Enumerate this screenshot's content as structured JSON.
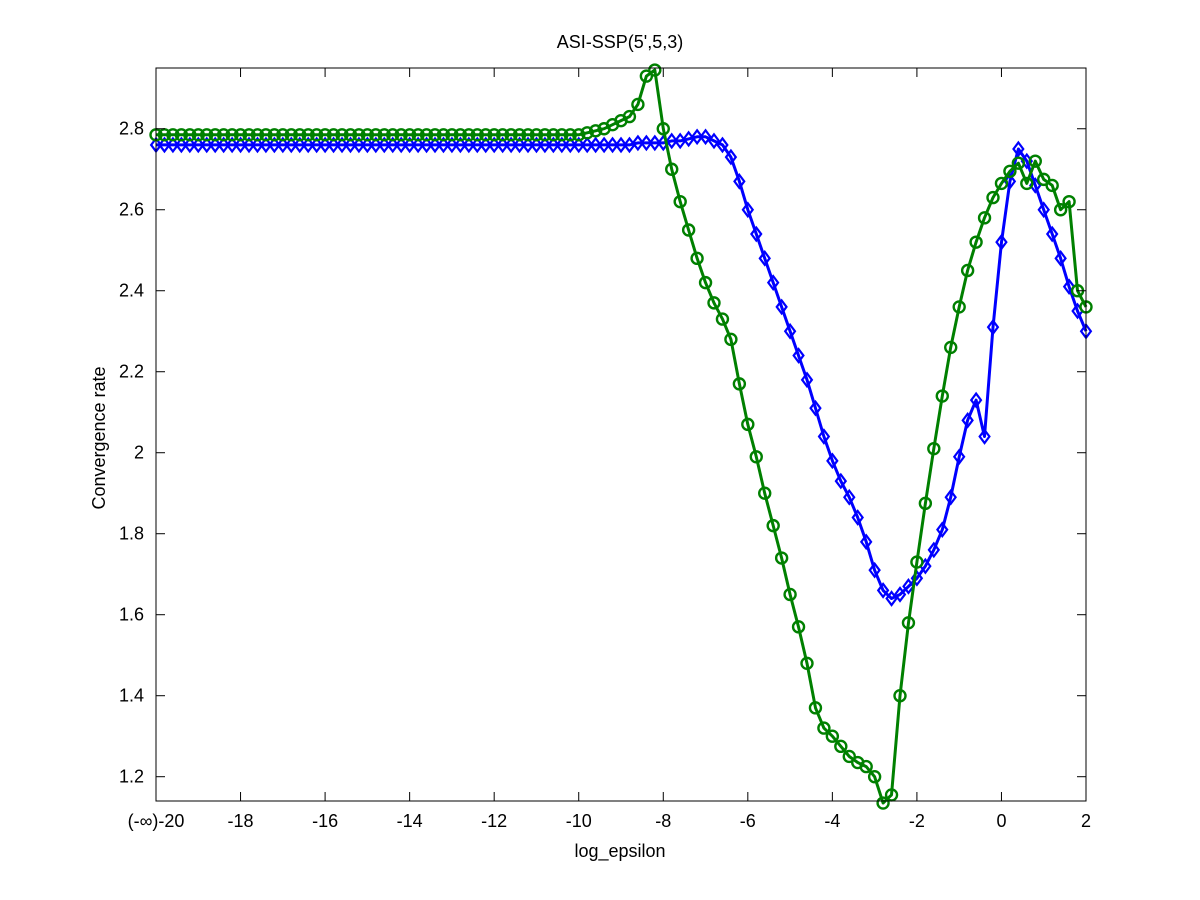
{
  "chart_data": {
    "type": "line",
    "title": "ASI-SSP(5',5,3)",
    "xlabel": "log_epsilon",
    "ylabel": "Convergence rate",
    "xlim": [
      -20,
      2
    ],
    "ylim": [
      1.14,
      2.95
    ],
    "xticks": [
      -20,
      -18,
      -16,
      -14,
      -12,
      -10,
      -8,
      -6,
      -4,
      -2,
      0,
      2
    ],
    "xtick_labels": [
      "(-∞)-20",
      "-18",
      "-16",
      "-14",
      "-12",
      "-10",
      "-8",
      "-6",
      "-4",
      "-2",
      "0",
      "2"
    ],
    "yticks": [
      1.2,
      1.4,
      1.6,
      1.8,
      2.0,
      2.2,
      2.4,
      2.6,
      2.8
    ],
    "ytick_labels": [
      "1.2",
      "1.4",
      "1.6",
      "1.8",
      "2",
      "2.2",
      "2.4",
      "2.6",
      "2.8"
    ],
    "grid": false,
    "series": [
      {
        "color": "#0000ff",
        "marker": "diamond",
        "x": [
          -20,
          -19.8,
          -19.6,
          -19.4,
          -19.2,
          -19,
          -18.8,
          -18.6,
          -18.4,
          -18.2,
          -18,
          -17.8,
          -17.6,
          -17.4,
          -17.2,
          -17,
          -16.8,
          -16.6,
          -16.4,
          -16.2,
          -16,
          -15.8,
          -15.6,
          -15.4,
          -15.2,
          -15,
          -14.8,
          -14.6,
          -14.4,
          -14.2,
          -14,
          -13.8,
          -13.6,
          -13.4,
          -13.2,
          -13,
          -12.8,
          -12.6,
          -12.4,
          -12.2,
          -12,
          -11.8,
          -11.6,
          -11.4,
          -11.2,
          -11,
          -10.8,
          -10.6,
          -10.4,
          -10.2,
          -10,
          -9.8,
          -9.6,
          -9.4,
          -9.2,
          -9,
          -8.8,
          -8.6,
          -8.4,
          -8.2,
          -8,
          -7.8,
          -7.6,
          -7.4,
          -7.2,
          -7,
          -6.8,
          -6.6,
          -6.4,
          -6.2,
          -6,
          -5.8,
          -5.6,
          -5.4,
          -5.2,
          -5,
          -4.8,
          -4.6,
          -4.4,
          -4.2,
          -4,
          -3.8,
          -3.6,
          -3.4,
          -3.2,
          -3,
          -2.8,
          -2.6,
          -2.4,
          -2.2,
          -2,
          -1.8,
          -1.6,
          -1.4,
          -1.2,
          -1,
          -0.8,
          -0.6,
          -0.4,
          -0.2,
          0,
          0.2,
          0.4,
          0.6,
          0.8,
          1,
          1.2,
          1.4,
          1.6,
          1.8,
          2
        ],
        "y": [
          2.76,
          2.76,
          2.76,
          2.76,
          2.76,
          2.76,
          2.76,
          2.76,
          2.76,
          2.76,
          2.76,
          2.76,
          2.76,
          2.76,
          2.76,
          2.76,
          2.76,
          2.76,
          2.76,
          2.76,
          2.76,
          2.76,
          2.76,
          2.76,
          2.76,
          2.76,
          2.76,
          2.76,
          2.76,
          2.76,
          2.76,
          2.76,
          2.76,
          2.76,
          2.76,
          2.76,
          2.76,
          2.76,
          2.76,
          2.76,
          2.76,
          2.76,
          2.76,
          2.76,
          2.76,
          2.76,
          2.76,
          2.76,
          2.76,
          2.76,
          2.76,
          2.76,
          2.76,
          2.76,
          2.76,
          2.76,
          2.76,
          2.765,
          2.765,
          2.765,
          2.765,
          2.77,
          2.77,
          2.775,
          2.78,
          2.78,
          2.77,
          2.76,
          2.73,
          2.67,
          2.6,
          2.54,
          2.48,
          2.42,
          2.36,
          2.3,
          2.24,
          2.18,
          2.11,
          2.04,
          1.98,
          1.93,
          1.89,
          1.84,
          1.78,
          1.71,
          1.66,
          1.64,
          1.65,
          1.67,
          1.69,
          1.72,
          1.76,
          1.81,
          1.89,
          1.99,
          2.08,
          2.13,
          2.04,
          2.31,
          2.52,
          2.67,
          2.75,
          2.72,
          2.66,
          2.6,
          2.54,
          2.48,
          2.41,
          2.35,
          2.3
        ]
      },
      {
        "color": "#008000",
        "marker": "circle",
        "x": [
          -20,
          -19.8,
          -19.6,
          -19.4,
          -19.2,
          -19,
          -18.8,
          -18.6,
          -18.4,
          -18.2,
          -18,
          -17.8,
          -17.6,
          -17.4,
          -17.2,
          -17,
          -16.8,
          -16.6,
          -16.4,
          -16.2,
          -16,
          -15.8,
          -15.6,
          -15.4,
          -15.2,
          -15,
          -14.8,
          -14.6,
          -14.4,
          -14.2,
          -14,
          -13.8,
          -13.6,
          -13.4,
          -13.2,
          -13,
          -12.8,
          -12.6,
          -12.4,
          -12.2,
          -12,
          -11.8,
          -11.6,
          -11.4,
          -11.2,
          -11,
          -10.8,
          -10.6,
          -10.4,
          -10.2,
          -10,
          -9.8,
          -9.6,
          -9.4,
          -9.2,
          -9,
          -8.8,
          -8.6,
          -8.4,
          -8.2,
          -8,
          -7.8,
          -7.6,
          -7.4,
          -7.2,
          -7,
          -6.8,
          -6.6,
          -6.4,
          -6.2,
          -6,
          -5.8,
          -5.6,
          -5.4,
          -5.2,
          -5,
          -4.8,
          -4.6,
          -4.4,
          -4.2,
          -4,
          -3.8,
          -3.6,
          -3.4,
          -3.2,
          -3,
          -2.8,
          -2.6,
          -2.4,
          -2.2,
          -2,
          -1.8,
          -1.6,
          -1.4,
          -1.2,
          -1,
          -0.8,
          -0.6,
          -0.4,
          -0.2,
          0,
          0.2,
          0.4,
          0.6,
          0.8,
          1,
          1.2,
          1.4,
          1.6,
          1.8,
          2
        ],
        "y": [
          2.785,
          2.785,
          2.785,
          2.785,
          2.785,
          2.785,
          2.785,
          2.785,
          2.785,
          2.785,
          2.785,
          2.785,
          2.785,
          2.785,
          2.785,
          2.785,
          2.785,
          2.785,
          2.785,
          2.785,
          2.785,
          2.785,
          2.785,
          2.785,
          2.785,
          2.785,
          2.785,
          2.785,
          2.785,
          2.785,
          2.785,
          2.785,
          2.785,
          2.785,
          2.785,
          2.785,
          2.785,
          2.785,
          2.785,
          2.785,
          2.785,
          2.785,
          2.785,
          2.785,
          2.785,
          2.785,
          2.785,
          2.785,
          2.785,
          2.785,
          2.785,
          2.79,
          2.795,
          2.8,
          2.81,
          2.82,
          2.83,
          2.86,
          2.93,
          2.945,
          2.8,
          2.7,
          2.62,
          2.55,
          2.48,
          2.42,
          2.37,
          2.33,
          2.28,
          2.17,
          2.07,
          1.99,
          1.9,
          1.82,
          1.74,
          1.65,
          1.57,
          1.48,
          1.37,
          1.32,
          1.3,
          1.275,
          1.25,
          1.235,
          1.225,
          1.2,
          1.135,
          1.155,
          1.4,
          1.58,
          1.73,
          1.875,
          2.01,
          2.14,
          2.26,
          2.36,
          2.45,
          2.52,
          2.58,
          2.63,
          2.665,
          2.695,
          2.715,
          2.665,
          2.72,
          2.675,
          2.66,
          2.6,
          2.62,
          2.4,
          2.36
        ]
      }
    ]
  }
}
